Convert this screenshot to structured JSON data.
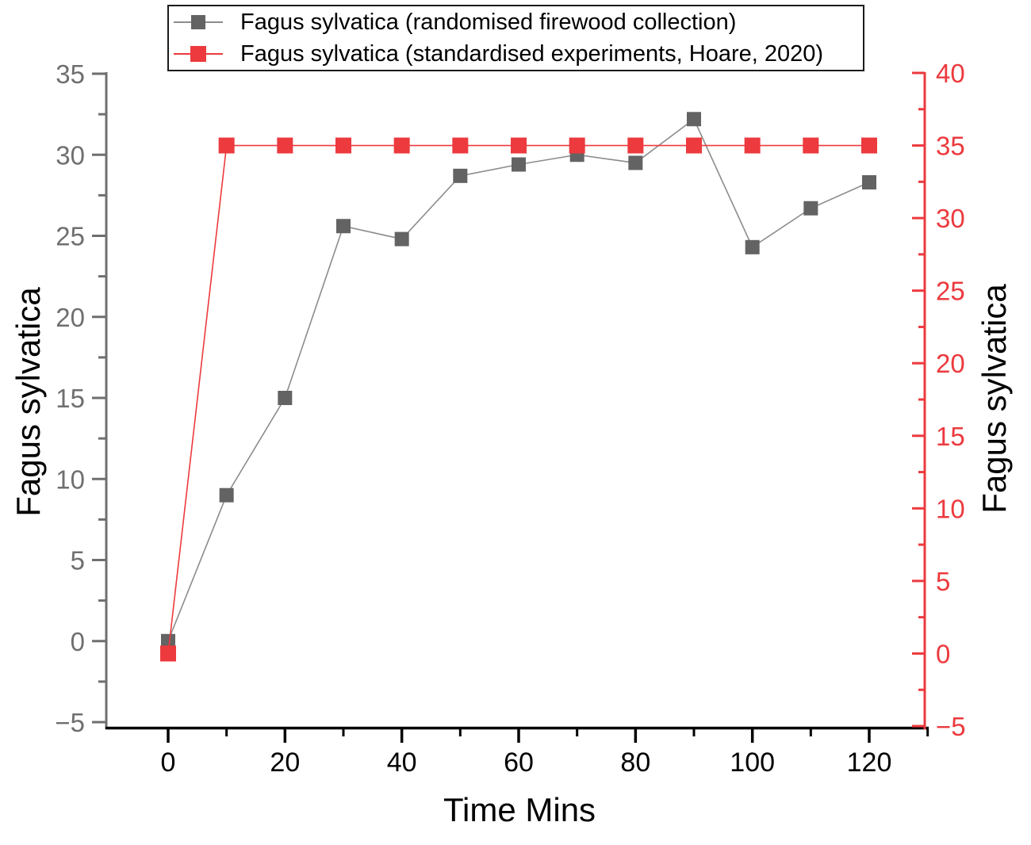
{
  "chart_data": {
    "type": "line",
    "title": "",
    "x": [
      0,
      10,
      20,
      30,
      40,
      50,
      60,
      70,
      80,
      90,
      100,
      110,
      120
    ],
    "series": [
      {
        "name": "Fagus sylvatica (randomised firewood collection)",
        "axis": "left",
        "marker": "square",
        "marker_size": 18,
        "marker_color": "#636363",
        "line_color": "#8c8c8c",
        "values": [
          0,
          9,
          15,
          25.6,
          24.8,
          28.7,
          29.4,
          30,
          29.5,
          32.2,
          24.3,
          26.7,
          28.3
        ]
      },
      {
        "name": "Fagus sylvatica (standardised experiments, Hoare, 2020)",
        "axis": "right",
        "marker": "square",
        "marker_size": 20,
        "marker_color": "#ec3a3e",
        "line_color": "#ec3a3e",
        "values": [
          0,
          35,
          35,
          35,
          35,
          35,
          35,
          35,
          35,
          35,
          35,
          35,
          35
        ]
      }
    ],
    "axes": {
      "bottom": {
        "label": "Time Mins",
        "color": "#000000",
        "min": -10.7,
        "max": 130.1,
        "major_ticks": [
          0,
          20,
          40,
          60,
          80,
          100,
          120
        ],
        "minor_ticks": [
          10,
          30,
          50,
          70,
          90,
          110,
          130
        ],
        "tick_direction": "out"
      },
      "left": {
        "label": "Fagus sylvatica",
        "color": "#6f6f6f",
        "min": -5,
        "max": 35,
        "major_ticks": [
          -5,
          0,
          5,
          10,
          15,
          20,
          25,
          30,
          35
        ],
        "minor_ticks": [
          -2.5,
          2.5,
          7.5,
          12.5,
          17.5,
          22.5,
          27.5,
          32.5
        ],
        "tick_direction": "out"
      },
      "right": {
        "label": "Fagus sylvatica",
        "color": "#ec3a3e",
        "min": -5,
        "max": 40,
        "major_ticks": [
          -5,
          0,
          5,
          10,
          15,
          20,
          25,
          30,
          35,
          40
        ],
        "minor_ticks": [
          -2.5,
          2.5,
          7.5,
          12.5,
          17.5,
          22.5,
          27.5,
          32.5,
          37.5
        ],
        "tick_direction": "in"
      }
    },
    "legend": {
      "position": "top-center",
      "border": true,
      "entries": [
        "Fagus sylvatica (randomised firewood collection)",
        "Fagus sylvatica (standardised experiments, Hoare, 2020)"
      ]
    },
    "grid": false,
    "background": "#ffffff"
  }
}
